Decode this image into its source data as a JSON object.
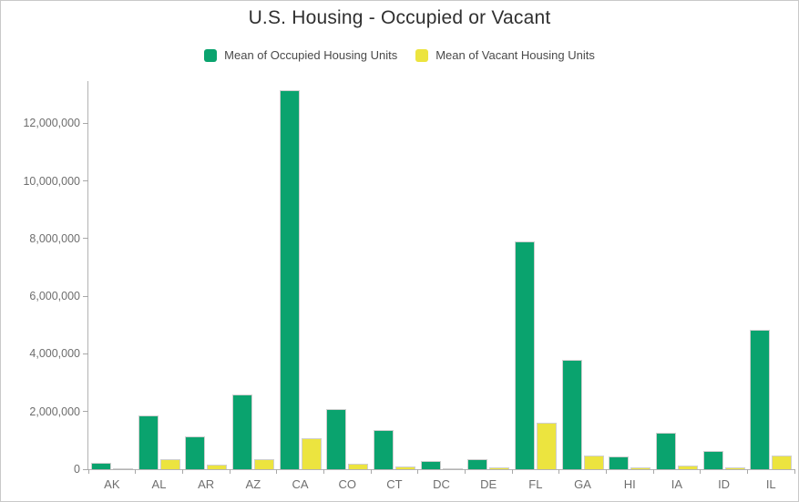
{
  "title": "U.S. Housing - Occupied or Vacant",
  "colors": {
    "occupied": "#0aa36e",
    "vacant": "#ece43f",
    "axis_line": "#b3b3b3",
    "tick_mark": "#a8a8a8",
    "bar_outline": "#cfcfcf",
    "title_text": "#303030",
    "legend_text": "#4a4a4a",
    "axis_label_text": "#6e6e6e",
    "canvas_border": "#c9c9c9",
    "background": "#ffffff"
  },
  "legend": {
    "items": [
      {
        "label": "Mean of Occupied Housing Units",
        "series_key": "occupied"
      },
      {
        "label": "Mean of Vacant Housing Units",
        "series_key": "vacant"
      }
    ]
  },
  "chart_data": {
    "type": "bar",
    "title": "U.S. Housing - Occupied or Vacant",
    "categories": [
      "AK",
      "AL",
      "AR",
      "AZ",
      "CA",
      "CO",
      "CT",
      "DC",
      "DE",
      "FL",
      "GA",
      "HI",
      "IA",
      "ID",
      "IL"
    ],
    "series": [
      {
        "name": "Mean of Occupied Housing Units",
        "key": "occupied",
        "color": "#0aa36e",
        "values": [
          220000,
          1850000,
          1150000,
          2600000,
          13150000,
          2100000,
          1350000,
          270000,
          340000,
          7900000,
          3800000,
          440000,
          1250000,
          620000,
          4850000
        ]
      },
      {
        "name": "Mean of Vacant Housing Units",
        "key": "vacant",
        "color": "#ece43f",
        "values": [
          40000,
          340000,
          170000,
          360000,
          1080000,
          190000,
          110000,
          40000,
          70000,
          1600000,
          470000,
          60000,
          130000,
          70000,
          460000
        ]
      }
    ],
    "xlabel": "",
    "ylabel": "",
    "ylim": [
      0,
      13460000
    ],
    "yticks": [
      0,
      2000000,
      4000000,
      6000000,
      8000000,
      10000000,
      12000000
    ],
    "ytick_labels": [
      "0",
      "2,000,000",
      "4,000,000",
      "6,000,000",
      "8,000,000",
      "10,000,000",
      "12,000,000"
    ],
    "grid": false,
    "legend_position": "top"
  }
}
